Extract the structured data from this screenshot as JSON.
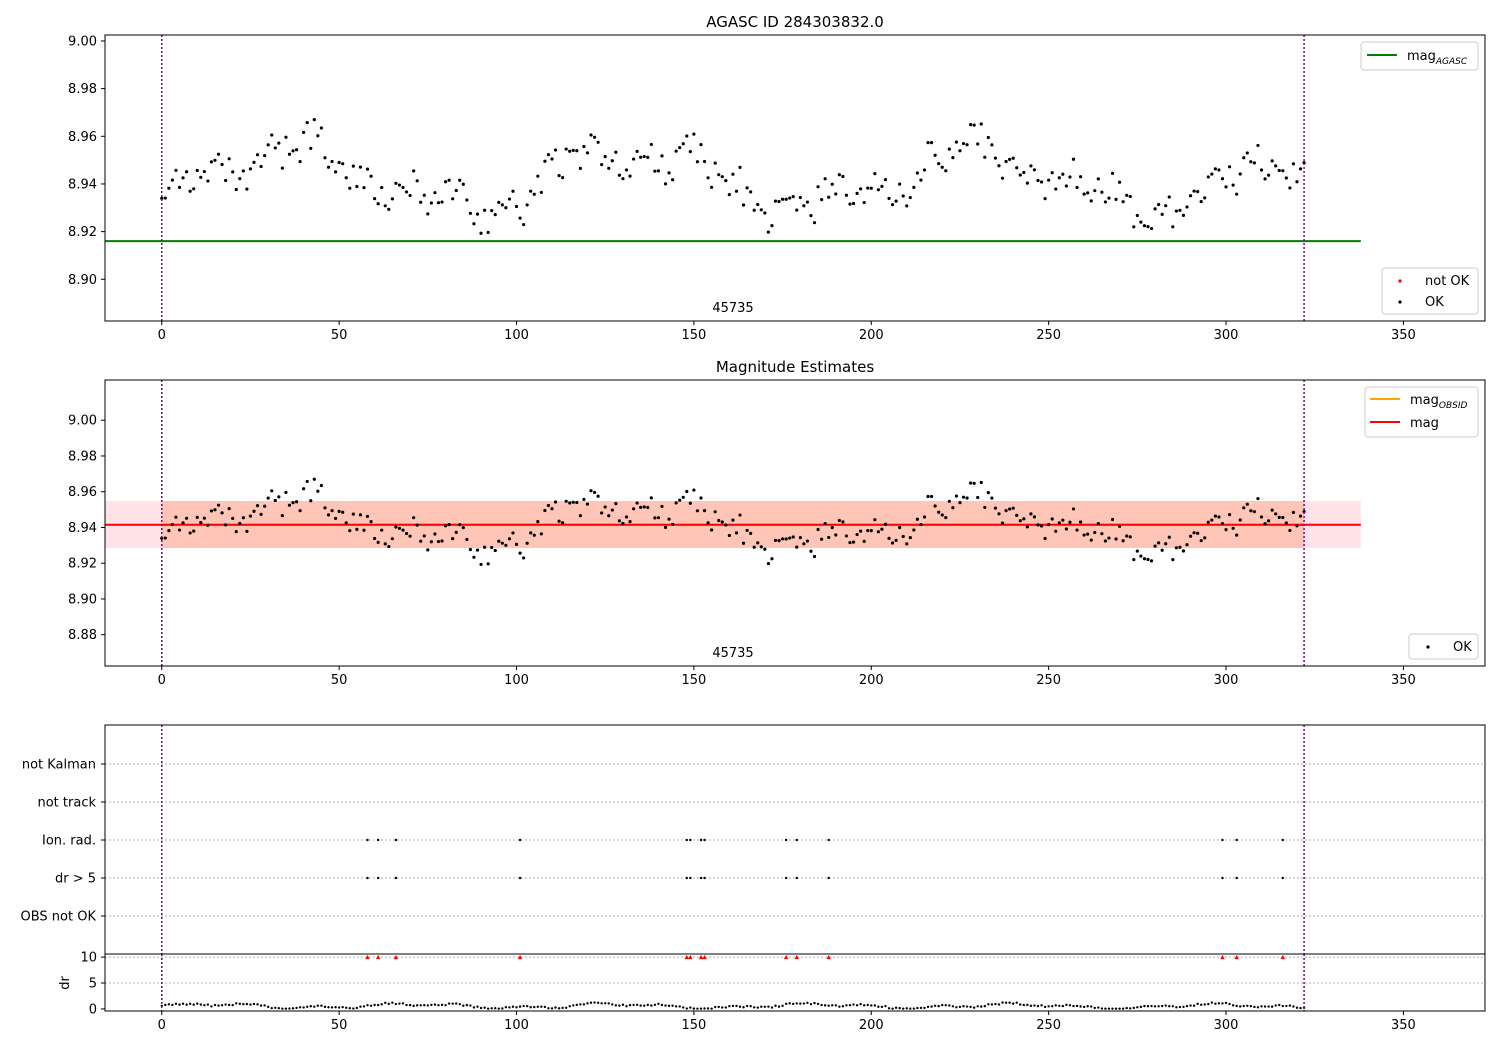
{
  "colors": {
    "agasc_line": "#008000",
    "obsid_line": "#ffa500",
    "mag_line": "#ff0000",
    "band_outer": "#ffc0cb",
    "band_inner": "#ffa07a",
    "obs_vline": "#800080",
    "ok_points": "#000000",
    "not_ok_points": "#ff0000"
  },
  "chart_data": [
    {
      "type": "scatter",
      "title": "AGASC ID 284303832.0",
      "xlim": [
        -16,
        373
      ],
      "ylim": [
        8.8825,
        9.0025
      ],
      "xticks": [
        0,
        50,
        100,
        150,
        200,
        250,
        300,
        350
      ],
      "xtick_labels": [
        "0",
        "50",
        "100",
        "150",
        "200",
        "250",
        "300",
        "350"
      ],
      "yticks": [
        8.9,
        8.92,
        8.94,
        8.96,
        8.98,
        9.0
      ],
      "ytick_labels": [
        "8.90",
        "8.92",
        "8.94",
        "8.96",
        "8.98",
        "9.00"
      ],
      "obsid_label": "45735",
      "obs_boundaries": [
        0,
        322
      ],
      "hlines": [
        {
          "name": "mag",
          "subscript": "AGASC",
          "y": 8.916,
          "x_range": [
            -16,
            338
          ]
        }
      ],
      "legend_lines": [
        {
          "label": "mag",
          "subscript": "AGASC"
        }
      ],
      "legend_points": [
        {
          "label": "not OK"
        },
        {
          "label": "OK"
        }
      ],
      "legend_lines_loc": "upper right",
      "legend_points_loc": "lower right"
    },
    {
      "type": "scatter",
      "title": "Magnitude Estimates",
      "xlim": [
        -16,
        373
      ],
      "ylim": [
        8.8625,
        9.0225
      ],
      "xticks": [
        0,
        50,
        100,
        150,
        200,
        250,
        300,
        350
      ],
      "xtick_labels": [
        "0",
        "50",
        "100",
        "150",
        "200",
        "250",
        "300",
        "350"
      ],
      "yticks": [
        8.88,
        8.9,
        8.92,
        8.94,
        8.96,
        8.98,
        9.0
      ],
      "ytick_labels": [
        "8.88",
        "8.90",
        "8.92",
        "8.94",
        "8.96",
        "8.98",
        "9.00"
      ],
      "obsid_label": "45735",
      "obs_boundaries": [
        0,
        322
      ],
      "mag_obsid": 8.9415,
      "mag": 8.9415,
      "band_outer": {
        "lo": 8.9285,
        "hi": 8.9548,
        "x_range": [
          -16,
          338
        ]
      },
      "band_inner": {
        "lo": 8.9285,
        "hi": 8.9548,
        "x_range": [
          0,
          322
        ]
      },
      "legend_lines": [
        {
          "label": "mag",
          "subscript": "OBSID"
        },
        {
          "label": "mag",
          "subscript": ""
        }
      ],
      "legend_points": [
        {
          "label": "OK"
        }
      ],
      "legend_lines_loc": "upper right",
      "legend_points_loc": "lower right"
    },
    {
      "type": "scatter",
      "title": "",
      "xlim": [
        -16,
        373
      ],
      "categories": [
        "OBS not OK",
        "dr > 5",
        "Ion. rad.",
        "not track",
        "not Kalman"
      ],
      "flag_x": [
        58,
        61,
        66,
        101,
        148,
        149,
        152,
        153,
        176,
        179,
        188,
        299,
        303,
        316
      ],
      "flag_rows": {
        "dr > 5": true,
        "Ion. rad.": true
      },
      "obs_boundaries": [
        0,
        322
      ]
    },
    {
      "type": "scatter",
      "title": "",
      "ylabel": "dr",
      "xlim": [
        -16,
        373
      ],
      "ylim": [
        -0.4,
        10.6
      ],
      "xticks": [
        0,
        50,
        100,
        150,
        200,
        250,
        300,
        350
      ],
      "xtick_labels": [
        "0",
        "50",
        "100",
        "150",
        "200",
        "250",
        "300",
        "350"
      ],
      "yticks": [
        0,
        5,
        10
      ],
      "ytick_labels": [
        "0",
        "5",
        "10"
      ],
      "clipped_value": 10,
      "clipped_x": [
        58,
        61,
        66,
        101,
        148,
        149,
        152,
        153,
        176,
        179,
        188,
        299,
        303,
        316
      ],
      "obs_boundaries": [
        0,
        322
      ]
    }
  ]
}
